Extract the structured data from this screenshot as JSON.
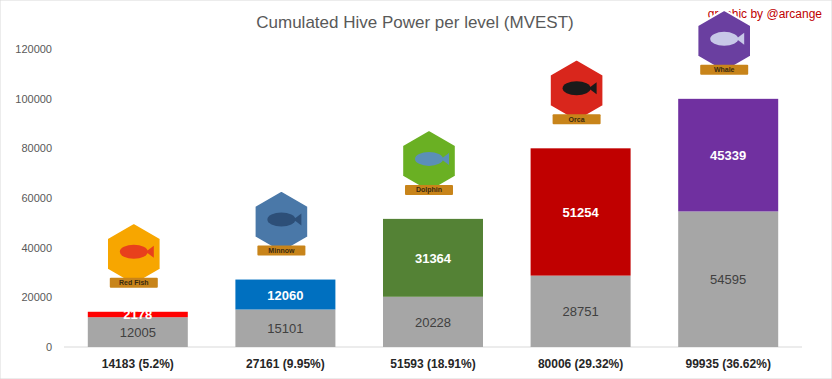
{
  "chart_data": {
    "type": "bar",
    "title": "Cumulated Hive Power per level (MVEST)",
    "annotation": "graphic by @arcange",
    "categories": [
      "14183 (5.2%)",
      "27161 (9.95%)",
      "51593 (18.91%)",
      "80006 (29.32%)",
      "99935 (36.62%)"
    ],
    "badges": [
      "Red Fish",
      "Minnow",
      "Dolphin",
      "Orca",
      "Whale"
    ],
    "series": [
      {
        "color": "#a6a6a6",
        "values": [
          12005,
          15101,
          20228,
          28751,
          54595
        ]
      },
      {
        "colors": [
          "#ff0000",
          "#0070c0",
          "#548235",
          "#c00000",
          "#7030a0"
        ],
        "values": [
          2178,
          12060,
          31364,
          51254,
          45339
        ]
      }
    ],
    "stacked": true,
    "data_labels": true,
    "ylim": [
      0,
      120000
    ],
    "yticks": [
      0,
      20000,
      40000,
      60000,
      80000,
      100000,
      120000
    ],
    "grid": false
  }
}
